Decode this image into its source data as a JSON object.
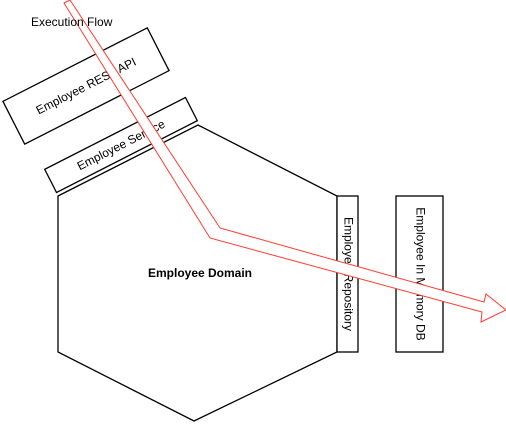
{
  "diagram": {
    "flow_label": "Execution Flow",
    "rest_api_label": "Employee REST API",
    "service_label": "Employee Service",
    "domain_label": "Employee Domain",
    "repository_label": "Employee Repository",
    "db_label": "Employee In Memory DB"
  },
  "colors": {
    "stroke": "#000000",
    "flow_arrow": "#ff3b30",
    "background": "#ffffff"
  }
}
